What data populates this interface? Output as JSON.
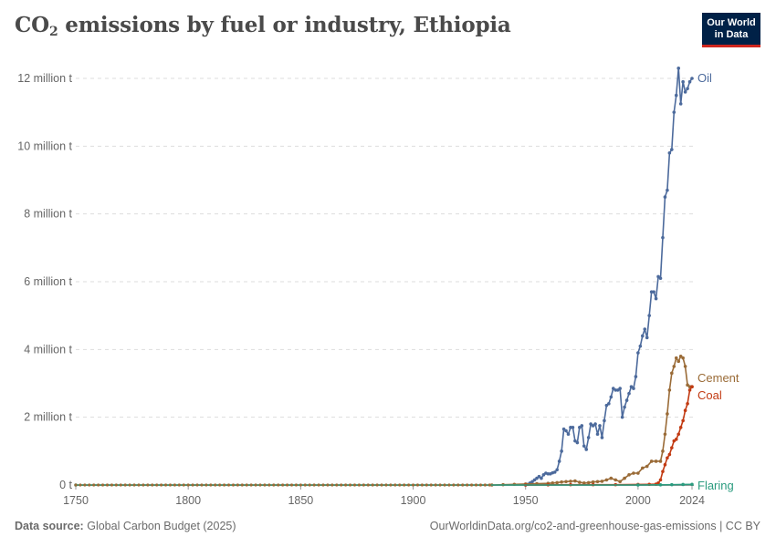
{
  "header": {
    "title_main": "CO",
    "title_sub": "2",
    "title_rest": " emissions by fuel or industry, Ethiopia",
    "logo_line1": "Our World",
    "logo_line2": "in Data"
  },
  "footer": {
    "source_label": "Data source:",
    "source_value": "Global Carbon Budget (2025)",
    "right_text": "OurWorldinData.org/co2-and-greenhouse-gas-emissions | CC BY"
  },
  "chart_data": {
    "type": "line",
    "title": "CO₂ emissions by fuel or industry, Ethiopia",
    "xlabel": "",
    "ylabel": "",
    "xlim": [
      1750,
      2024
    ],
    "ylim": [
      0,
      12000000
    ],
    "x_ticks": [
      1750,
      1800,
      1850,
      1900,
      1950,
      2000,
      2024
    ],
    "x_tick_labels": [
      "1750",
      "1800",
      "1850",
      "1900",
      "1950",
      "2000",
      "2024"
    ],
    "y_ticks": [
      0,
      2000000,
      4000000,
      6000000,
      8000000,
      10000000,
      12000000
    ],
    "y_tick_labels": [
      "0 t",
      "2 million t",
      "4 million t",
      "6 million t",
      "8 million t",
      "10 million t",
      "12 million t"
    ],
    "grid": "horizontal dashed",
    "legend": "inline labels at right",
    "series": [
      {
        "name": "Oil",
        "color": "#4c6a9c",
        "x": [
          1950,
          1951,
          1952,
          1953,
          1954,
          1955,
          1956,
          1957,
          1958,
          1959,
          1960,
          1961,
          1962,
          1963,
          1964,
          1965,
          1966,
          1967,
          1968,
          1969,
          1970,
          1971,
          1972,
          1973,
          1974,
          1975,
          1976,
          1977,
          1978,
          1979,
          1980,
          1981,
          1982,
          1983,
          1984,
          1985,
          1986,
          1987,
          1988,
          1989,
          1990,
          1991,
          1992,
          1993,
          1994,
          1995,
          1996,
          1997,
          1998,
          1999,
          2000,
          2001,
          2002,
          2003,
          2004,
          2005,
          2006,
          2007,
          2008,
          2009,
          2010,
          2011,
          2012,
          2013,
          2014,
          2015,
          2016,
          2017,
          2018,
          2019,
          2020,
          2021,
          2022,
          2023,
          2024
        ],
        "values": [
          0,
          20000,
          60000,
          100000,
          150000,
          200000,
          250000,
          200000,
          300000,
          350000,
          330000,
          330000,
          360000,
          380000,
          450000,
          700000,
          1000000,
          1650000,
          1600000,
          1500000,
          1700000,
          1700000,
          1300000,
          1250000,
          1700000,
          1750000,
          1150000,
          1050000,
          1400000,
          1800000,
          1750000,
          1800000,
          1500000,
          1750000,
          1400000,
          1900000,
          2350000,
          2400000,
          2600000,
          2850000,
          2800000,
          2800000,
          2850000,
          2000000,
          2300000,
          2500000,
          2700000,
          2900000,
          2850000,
          3200000,
          3900000,
          4100000,
          4400000,
          4600000,
          4350000,
          5000000,
          5700000,
          5700000,
          5500000,
          6150000,
          6100000,
          7300000,
          8500000,
          8700000,
          9800000,
          9900000,
          11000000,
          11500000,
          12300000,
          11250000,
          11900000,
          11600000,
          11700000,
          11900000,
          12000000
        ]
      },
      {
        "name": "Cement",
        "color": "#9a6b37",
        "x": [
          1935,
          1940,
          1945,
          1950,
          1955,
          1960,
          1962,
          1964,
          1966,
          1968,
          1970,
          1972,
          1974,
          1976,
          1978,
          1980,
          1982,
          1984,
          1986,
          1988,
          1990,
          1992,
          1994,
          1996,
          1998,
          2000,
          2002,
          2004,
          2006,
          2008,
          2010,
          2011,
          2012,
          2013,
          2014,
          2015,
          2016,
          2017,
          2018,
          2019,
          2020,
          2021,
          2022,
          2023,
          2024
        ],
        "values": [
          0,
          10000,
          20000,
          30000,
          40000,
          50000,
          60000,
          70000,
          90000,
          100000,
          110000,
          120000,
          80000,
          60000,
          70000,
          90000,
          100000,
          110000,
          150000,
          200000,
          150000,
          100000,
          200000,
          300000,
          350000,
          350000,
          500000,
          550000,
          700000,
          700000,
          700000,
          1000000,
          1500000,
          2100000,
          2800000,
          3300000,
          3500000,
          3750000,
          3650000,
          3800000,
          3750000,
          3500000,
          2950000,
          2900000,
          2900000
        ]
      },
      {
        "name": "Coal",
        "color": "#c23a12",
        "x": [
          1950,
          1960,
          1970,
          1980,
          1990,
          2000,
          2005,
          2008,
          2009,
          2010,
          2011,
          2012,
          2013,
          2014,
          2015,
          2016,
          2017,
          2018,
          2019,
          2020,
          2021,
          2022,
          2023,
          2024
        ],
        "values": [
          0,
          5000,
          10000,
          10000,
          10000,
          15000,
          20000,
          25000,
          60000,
          150000,
          400000,
          600000,
          800000,
          900000,
          1100000,
          1300000,
          1350000,
          1500000,
          1700000,
          1900000,
          2200000,
          2400000,
          2800000,
          2900000
        ]
      },
      {
        "name": "Flaring",
        "color": "#2a9b7e",
        "x": [
          1750,
          2000,
          2010,
          2015,
          2020,
          2024
        ],
        "values": [
          0,
          0,
          5000,
          10000,
          15000,
          20000
        ]
      }
    ]
  }
}
